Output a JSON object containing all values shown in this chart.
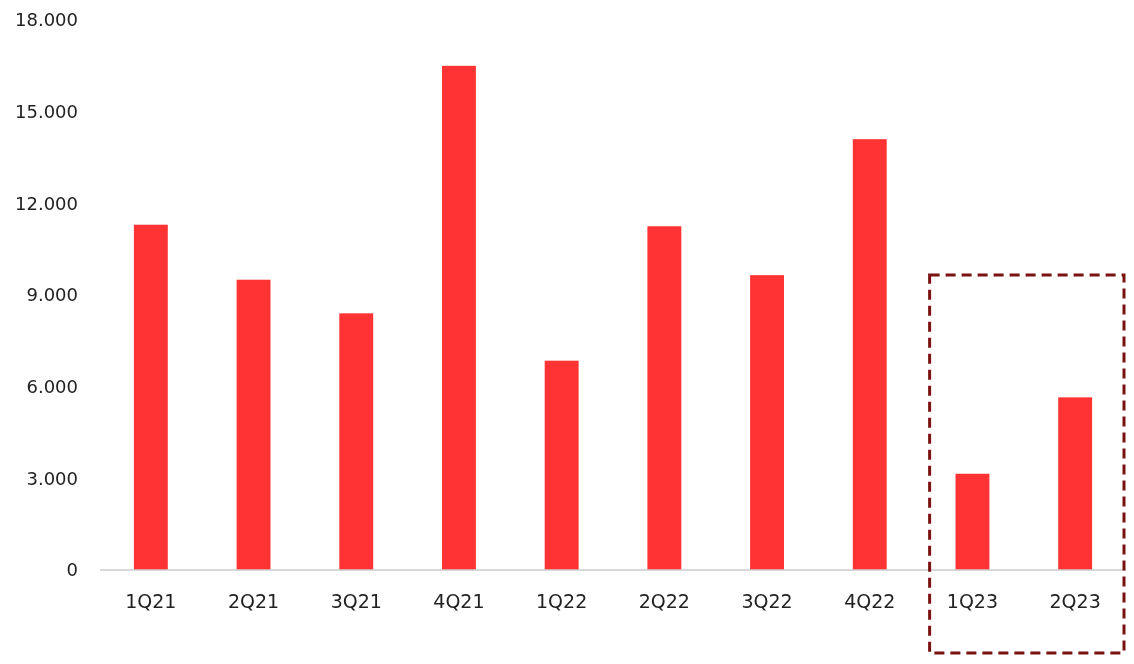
{
  "chart_data": {
    "type": "bar",
    "categories": [
      "1Q21",
      "2Q21",
      "3Q21",
      "4Q21",
      "1Q22",
      "2Q22",
      "3Q22",
      "4Q22",
      "1Q23",
      "2Q23"
    ],
    "values": [
      11300,
      9500,
      8400,
      16500,
      6850,
      11250,
      9650,
      14100,
      3150,
      5650
    ],
    "color": "#ff3333",
    "ylim": [
      0,
      18000
    ],
    "yticks": [
      {
        "value": 0,
        "label": "0"
      },
      {
        "value": 3000,
        "label": "3.000"
      },
      {
        "value": 6000,
        "label": "6.000"
      },
      {
        "value": 9000,
        "label": "9.000"
      },
      {
        "value": 12000,
        "label": "12.000"
      },
      {
        "value": 15000,
        "label": "15.000"
      },
      {
        "value": 18000,
        "label": "18.000"
      }
    ],
    "grid": false
  }
}
